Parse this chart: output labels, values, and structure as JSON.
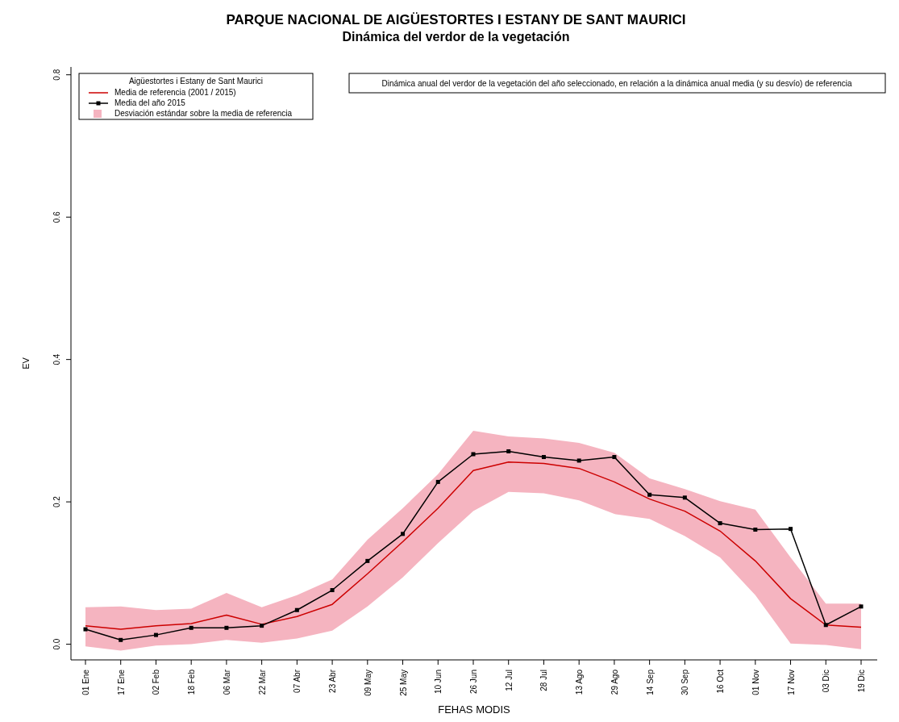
{
  "chart_data": {
    "type": "line",
    "title": "PARQUE NACIONAL DE AIGÜESTORTES I ESTANY DE SANT MAURICI",
    "subtitle": "Dinámica del verdor de la vegetación",
    "xlabel": "FEHAS MODIS",
    "ylabel": "EV",
    "categories": [
      "01 Ene",
      "17 Ene",
      "02 Feb",
      "18 Feb",
      "06 Mar",
      "22 Mar",
      "07 Abr",
      "23 Abr",
      "09 May",
      "25 May",
      "10 Jun",
      "26 Jun",
      "12 Jul",
      "28 Jul",
      "13 Ago",
      "29 Ago",
      "14 Sep",
      "30 Sep",
      "16 Oct",
      "01 Nov",
      "17 Nov",
      "03 Dic",
      "19 Dic"
    ],
    "series": [
      {
        "name": "Media de referencia (2001 / 2015)",
        "color": "#cc0000",
        "marker": "none",
        "values": [
          0.026,
          0.021,
          0.026,
          0.029,
          0.041,
          0.028,
          0.039,
          0.056,
          0.099,
          0.144,
          0.191,
          0.244,
          0.256,
          0.254,
          0.247,
          0.228,
          0.204,
          0.187,
          0.159,
          0.117,
          0.064,
          0.027,
          0.024
        ],
        "lower": [
          -0.003,
          -0.009,
          -0.002,
          0.0,
          0.006,
          0.002,
          0.008,
          0.019,
          0.053,
          0.094,
          0.142,
          0.187,
          0.214,
          0.212,
          0.202,
          0.183,
          0.176,
          0.152,
          0.122,
          0.069,
          0.001,
          -0.001,
          -0.007
        ],
        "upper": [
          0.052,
          0.053,
          0.048,
          0.05,
          0.072,
          0.052,
          0.069,
          0.091,
          0.147,
          0.191,
          0.239,
          0.3,
          0.292,
          0.289,
          0.283,
          0.269,
          0.233,
          0.218,
          0.201,
          0.189,
          0.122,
          0.057,
          0.057
        ]
      },
      {
        "name": "Media del año 2015",
        "color": "#000000",
        "marker": "square",
        "values": [
          0.021,
          0.006,
          0.013,
          0.023,
          0.023,
          0.026,
          0.048,
          0.076,
          0.117,
          0.155,
          0.228,
          0.267,
          0.271,
          0.263,
          0.258,
          0.263,
          0.21,
          0.206,
          0.17,
          0.161,
          0.162,
          0.027,
          0.053
        ]
      }
    ],
    "ylim": [
      -0.022,
      0.811
    ],
    "yticks": [
      {
        "value": 0,
        "label": "0.0"
      },
      0.2,
      0.4,
      0.6,
      0.8
    ],
    "legend": "top left",
    "legend_title": "Aigüestortes i Estany de Sant Maurici",
    "annotations": [
      "Desviación estándar sobre la media de referencia",
      "Dinámica anual del verdor de la vegetación del año seleccionado, en relación a la dinámica anual media (y su desvío) de referencia"
    ]
  }
}
